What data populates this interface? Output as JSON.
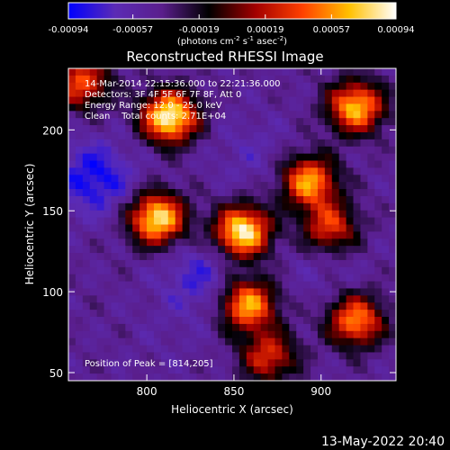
{
  "chart_data": {
    "type": "heatmap",
    "title": "Reconstructed RHESSI Image",
    "xlabel": "Heliocentric X (arcsec)",
    "ylabel": "Heliocentric Y (arcsec)",
    "xlim": [
      755,
      943
    ],
    "ylim": [
      45,
      238
    ],
    "x_ticks": [
      800,
      850,
      900
    ],
    "y_ticks": [
      50,
      100,
      150,
      200
    ],
    "colorbar": {
      "range": [
        -0.00094,
        0.00094
      ],
      "tick_values": [
        -0.00094,
        -0.00057,
        -0.00019,
        0.00019,
        0.00057,
        0.00094
      ],
      "tick_labels": [
        "-0.00094",
        "-0.00057",
        "-0.00019",
        "0.00019",
        "0.00057",
        "0.00094"
      ],
      "unit_prefix": "(photons cm",
      "unit_exp1": "-2",
      "unit_mid1": " s",
      "unit_exp2": "-1",
      "unit_mid2": " asec",
      "unit_exp3": "-2",
      "unit_suffix": ")",
      "colors": [
        "#0000ff",
        "#5b2bb5",
        "#5a1e8c",
        "#000000",
        "#a30000",
        "#ff4000",
        "#ffc000",
        "#ffffff"
      ]
    },
    "annotations": [
      "14-Mar-2014 22:15:36.000 to 22:21:36.000",
      "Detectors: 3F 4F 5F 6F 7F 8F, Att 0",
      "Energy Range: 12.0 - 25.0 keV",
      "Clean    Total counts: 2.71E+04"
    ],
    "peak_label": "Position of Peak = [814,205]",
    "sources": [
      {
        "x": 813,
        "y": 208,
        "intensity": 0.00094
      },
      {
        "x": 806,
        "y": 145,
        "intensity": 0.00085
      },
      {
        "x": 855,
        "y": 137,
        "intensity": 0.0009
      },
      {
        "x": 893,
        "y": 168,
        "intensity": 0.00062
      },
      {
        "x": 920,
        "y": 214,
        "intensity": 0.0007
      },
      {
        "x": 858,
        "y": 92,
        "intensity": 0.00066
      },
      {
        "x": 920,
        "y": 82,
        "intensity": 0.00055
      },
      {
        "x": 763,
        "y": 229,
        "intensity": 0.0004
      },
      {
        "x": 905,
        "y": 140,
        "intensity": 0.00035
      },
      {
        "x": 870,
        "y": 60,
        "intensity": 0.0003
      }
    ],
    "negative_regions": [
      {
        "x": 770,
        "y": 170,
        "intensity": -0.0009
      },
      {
        "x": 830,
        "y": 108,
        "intensity": -0.00075
      },
      {
        "x": 860,
        "y": 185,
        "intensity": -0.0006
      },
      {
        "x": 900,
        "y": 115,
        "intensity": -0.00055
      },
      {
        "x": 810,
        "y": 70,
        "intensity": -0.0005
      }
    ]
  },
  "footer": {
    "timestamp": "13-May-2022 20:40"
  }
}
